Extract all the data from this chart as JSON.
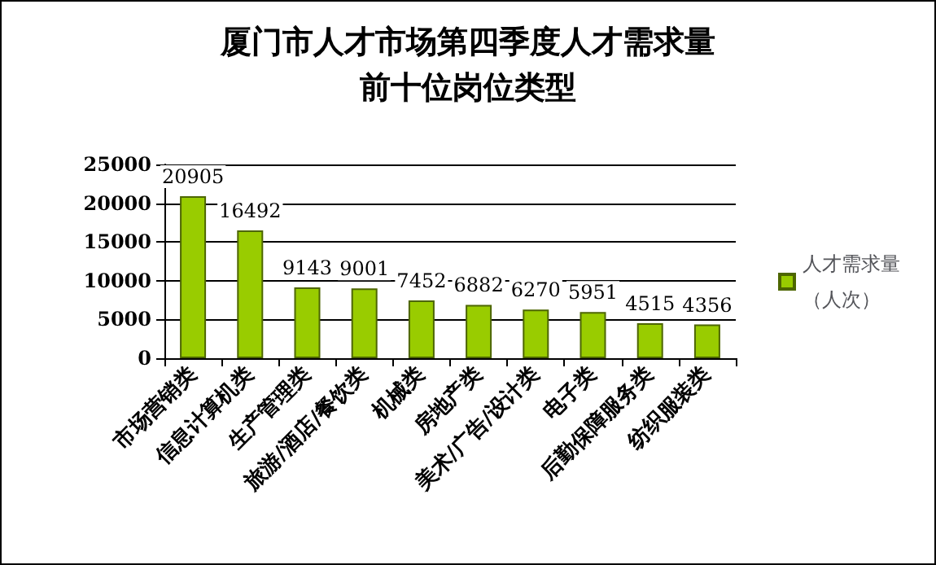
{
  "chart_data": {
    "type": "bar",
    "title": "厦门市人才市场第四季度人才需求量前十位岗位类型",
    "categories": [
      "市场营销类",
      "信息计算机类",
      "生产管理类",
      "旅游/酒店/餐饮类",
      "机械类",
      "房地产类",
      "美术/广告/设计类",
      "电子类",
      "后勤保障服务类",
      "纺织服装类"
    ],
    "series": [
      {
        "name": "人才需求量（人次）",
        "color": "#99cc00",
        "values": [
          20905,
          16492,
          9143,
          9001,
          7452,
          6882,
          6270,
          5951,
          4515,
          4356
        ]
      }
    ],
    "ylim": [
      0,
      25000
    ],
    "yticks": [
      0,
      5000,
      10000,
      15000,
      20000,
      25000
    ],
    "grid": "y",
    "legend": "right",
    "data_labels": true
  }
}
